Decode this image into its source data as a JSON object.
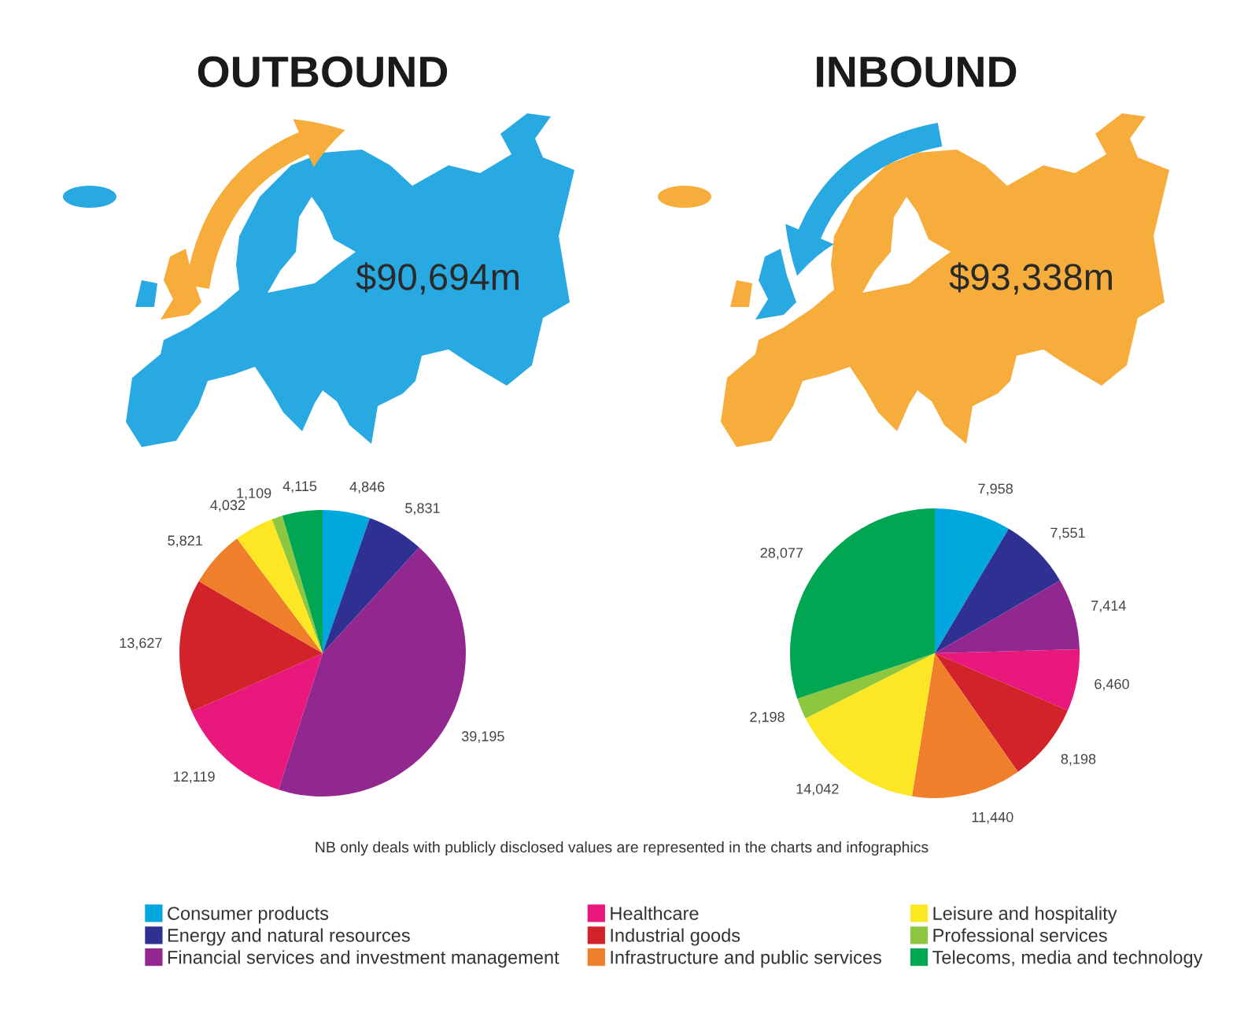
{
  "chart_data": [
    {
      "type": "pie",
      "title": "OUTBOUND",
      "categories": [
        "Consumer products",
        "Energy and natural resources",
        "Financial services and investment management",
        "Healthcare",
        "Industrial goods",
        "Infrastructure and public services",
        "Leisure and hospitality",
        "Professional services",
        "Telecoms, media and technology"
      ],
      "values": [
        4846,
        5831,
        39195,
        12119,
        13627,
        5821,
        4032,
        1109,
        4115
      ],
      "value_labels": [
        "4,846",
        "5,831",
        "39,195",
        "12,119",
        "13,627",
        "5,821",
        "4,032",
        "1,109",
        "4,115"
      ],
      "colors": [
        "#00a8df",
        "#2e3192",
        "#92278f",
        "#e9187d",
        "#d2232a",
        "#f07f2b",
        "#fde725",
        "#8dc63f",
        "#00a651"
      ],
      "legend": "bottom",
      "annotations": [
        "$90,694m",
        "NB only deals with publicly disclosed values are represented in the charts and infographics"
      ]
    },
    {
      "type": "pie",
      "title": "INBOUND",
      "categories": [
        null,
        null,
        null,
        null,
        null,
        null,
        null,
        null,
        null
      ],
      "values": [
        7958,
        7551,
        7414,
        6460,
        8198,
        11440,
        14042,
        2198,
        28077
      ],
      "value_labels": [
        "7,958",
        "7,551",
        "7,414",
        "6,460",
        "8,198",
        "11,440",
        "14,042",
        "2,198",
        "28,077"
      ],
      "colors": [
        "#00a8df",
        "#2e3192",
        "#92278f",
        "#e9187d",
        "#d2232a",
        "#f07f2b",
        "#fde725",
        "#8dc63f",
        "#00a651"
      ],
      "annotations": [
        "$93,338m"
      ]
    }
  ]
}
